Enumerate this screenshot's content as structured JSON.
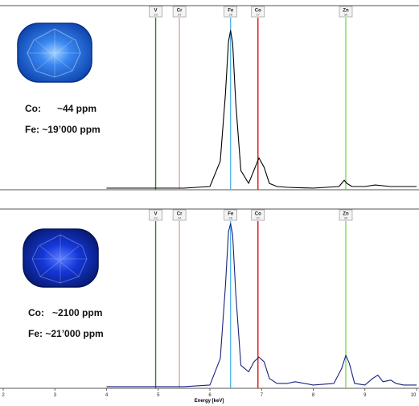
{
  "chart_data": [
    {
      "type": "line",
      "title": "",
      "xlabel": "Energy [keV]",
      "xlim": [
        2,
        10
      ],
      "element_markers": [
        {
          "symbol": "V",
          "number": "23",
          "energy": 4.95,
          "color": "#2e7d32"
        },
        {
          "symbol": "Cr",
          "number": "24",
          "energy": 5.41,
          "color": "#e8a39a"
        },
        {
          "symbol": "Fe",
          "number": "26",
          "energy": 6.4,
          "color": "#56b4e9"
        },
        {
          "symbol": "Co",
          "number": "27",
          "energy": 6.93,
          "color": "#e01010"
        },
        {
          "symbol": "Zn",
          "number": "30",
          "energy": 8.63,
          "color": "#7ed957"
        }
      ],
      "series": [
        {
          "color": "#000000",
          "x": [
            4.0,
            5.5,
            6.0,
            6.2,
            6.3,
            6.36,
            6.4,
            6.44,
            6.5,
            6.6,
            6.75,
            6.85,
            6.95,
            7.05,
            7.15,
            7.3,
            7.5,
            8.0,
            8.5,
            8.6,
            8.65,
            8.75,
            9.0,
            9.2,
            9.5,
            10.0
          ],
          "y": [
            0.01,
            0.01,
            0.02,
            0.18,
            0.6,
            0.93,
            1.0,
            0.92,
            0.55,
            0.12,
            0.04,
            0.12,
            0.2,
            0.14,
            0.04,
            0.02,
            0.015,
            0.01,
            0.02,
            0.06,
            0.04,
            0.02,
            0.02,
            0.03,
            0.02,
            0.02
          ]
        }
      ],
      "annotations": [
        "Co:      ~44 ppm",
        "Fe: ~19’000 ppm"
      ]
    },
    {
      "type": "line",
      "title": "",
      "xlabel": "Energy [keV]",
      "xlim": [
        2,
        10
      ],
      "xticks": [
        "2",
        "3",
        "4",
        "5",
        "6",
        "7",
        "8",
        "9",
        "10"
      ],
      "element_markers": [
        {
          "symbol": "V",
          "number": "23",
          "energy": 4.95,
          "color": "#2e7d32"
        },
        {
          "symbol": "Cr",
          "number": "24",
          "energy": 5.41,
          "color": "#e8a39a"
        },
        {
          "symbol": "Fe",
          "number": "26",
          "energy": 6.4,
          "color": "#56b4e9"
        },
        {
          "symbol": "Co",
          "number": "27",
          "energy": 6.93,
          "color": "#e01010"
        },
        {
          "symbol": "Zn",
          "number": "30",
          "energy": 8.63,
          "color": "#7ed957"
        }
      ],
      "series": [
        {
          "color": "#1a237e",
          "x": [
            4.0,
            5.5,
            6.0,
            6.2,
            6.3,
            6.36,
            6.4,
            6.44,
            6.5,
            6.6,
            6.75,
            6.85,
            6.95,
            7.05,
            7.15,
            7.3,
            7.5,
            7.65,
            8.0,
            8.4,
            8.55,
            8.63,
            8.7,
            8.8,
            9.0,
            9.15,
            9.25,
            9.35,
            9.5,
            9.6,
            9.75,
            10.0
          ],
          "y": [
            0.01,
            0.01,
            0.02,
            0.18,
            0.62,
            0.95,
            1.0,
            0.93,
            0.58,
            0.14,
            0.1,
            0.16,
            0.19,
            0.16,
            0.06,
            0.03,
            0.03,
            0.04,
            0.02,
            0.03,
            0.12,
            0.2,
            0.15,
            0.03,
            0.02,
            0.06,
            0.08,
            0.04,
            0.05,
            0.03,
            0.02,
            0.02
          ]
        }
      ],
      "annotations": [
        "Co:   ~2100 ppm",
        "Fe: ~21’000 ppm"
      ]
    }
  ],
  "gem_colors": {
    "light": "#2f74e8",
    "dark": "#0b2fc9"
  }
}
